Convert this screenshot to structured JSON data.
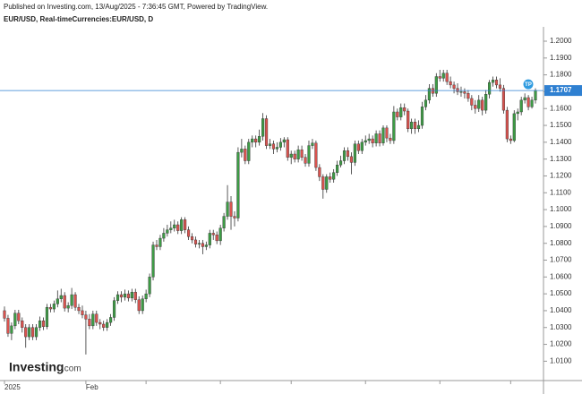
{
  "chart_data": {
    "type": "candlestick",
    "header": "Published on Investing.com, 13/Aug/2025 - 7:36:45 GMT, Powered by TradingView.",
    "title": "EUR/USD, Real-timeCurrencies:EUR/USD, D",
    "logo": {
      "brand": "Investing",
      "suffix": ".com"
    },
    "badge": "TP",
    "up_color": "#3d9b45",
    "down_color": "#d9534f",
    "last_price_color": "#2f80d1",
    "last_price": 1.1707,
    "month_start_index": [
      0,
      23,
      40,
      61,
      81,
      102,
      123,
      143
    ],
    "month_labels": [
      "2025",
      "Feb",
      null,
      null,
      null,
      null,
      null,
      null
    ],
    "ylim": [
      0.9985,
      1.2085
    ],
    "yticks": [
      {
        "value": 1.01,
        "label": "1.0100"
      },
      {
        "value": 1.02,
        "label": "1.0200"
      },
      {
        "value": 1.03,
        "label": "1.0300"
      },
      {
        "value": 1.04,
        "label": "1.0400"
      },
      {
        "value": 1.05,
        "label": "1.0500"
      },
      {
        "value": 1.06,
        "label": "1.0600"
      },
      {
        "value": 1.07,
        "label": "1.0700"
      },
      {
        "value": 1.08,
        "label": "1.0800"
      },
      {
        "value": 1.09,
        "label": "1.0900"
      },
      {
        "value": 1.1,
        "label": "1.1000"
      },
      {
        "value": 1.11,
        "label": "1.1100"
      },
      {
        "value": 1.12,
        "label": "1.1200"
      },
      {
        "value": 1.13,
        "label": "1.1300"
      },
      {
        "value": 1.14,
        "label": "1.1400"
      },
      {
        "value": 1.15,
        "label": "1.1500"
      },
      {
        "value": 1.16,
        "label": "1.1600"
      },
      {
        "value": 1.17,
        "label": "1.1700"
      },
      {
        "value": 1.18,
        "label": "1.1800"
      },
      {
        "value": 1.19,
        "label": "1.1900"
      },
      {
        "value": 1.2,
        "label": "1.2000"
      }
    ],
    "open": [
      1.04,
      1.0355,
      1.0265,
      1.031,
      1.0385,
      1.034,
      1.03,
      1.0245,
      1.03,
      1.0245,
      1.03,
      1.034,
      1.0305,
      1.042,
      1.041,
      1.044,
      1.047,
      1.049,
      1.0415,
      1.043,
      1.0495,
      1.042,
      1.04,
      1.0375,
      1.035,
      1.031,
      1.038,
      1.033,
      1.032,
      1.03,
      1.033,
      1.036,
      1.046,
      1.0495,
      1.048,
      1.05,
      1.0475,
      1.051,
      1.0465,
      1.04,
      1.047,
      1.05,
      1.06,
      1.079,
      1.078,
      1.083,
      1.086,
      1.088,
      1.089,
      1.091,
      1.0875,
      1.094,
      1.088,
      1.084,
      1.082,
      1.0795,
      1.08,
      1.078,
      1.079,
      1.086,
      1.085,
      1.0815,
      1.089,
      1.096,
      1.1045,
      1.096,
      1.095,
      1.134,
      1.136,
      1.129,
      1.14,
      1.142,
      1.14,
      1.1435,
      1.154,
      1.138,
      1.139,
      1.136,
      1.137,
      1.14,
      1.1415,
      1.131,
      1.133,
      1.13,
      1.1355,
      1.131,
      1.1275,
      1.138,
      1.1395,
      1.125,
      1.1195,
      1.112,
      1.1195,
      1.118,
      1.122,
      1.1265,
      1.129,
      1.135,
      1.1315,
      1.128,
      1.139,
      1.135,
      1.14,
      1.141,
      1.142,
      1.1395,
      1.145,
      1.1395,
      1.1485,
      1.1425,
      1.141,
      1.158,
      1.155,
      1.1605,
      1.1585,
      1.148,
      1.152,
      1.148,
      1.15,
      1.161,
      1.165,
      1.172,
      1.169,
      1.179,
      1.178,
      1.181,
      1.176,
      1.174,
      1.172,
      1.17,
      1.17,
      1.169,
      1.166,
      1.162,
      1.16,
      1.165,
      1.159,
      1.1685,
      1.1755,
      1.177,
      1.174,
      1.172,
      1.159,
      1.142,
      1.141,
      1.157,
      1.158,
      1.165,
      1.1665,
      1.161,
      1.165
    ],
    "high": [
      1.0425,
      1.0375,
      1.033,
      1.0405,
      1.0405,
      1.036,
      1.032,
      1.032,
      1.032,
      1.032,
      1.0365,
      1.036,
      1.044,
      1.044,
      1.046,
      1.052,
      1.053,
      1.051,
      1.045,
      1.0535,
      1.051,
      1.044,
      1.043,
      1.04,
      1.038,
      1.04,
      1.04,
      1.035,
      1.034,
      1.035,
      1.038,
      1.048,
      1.0515,
      1.0515,
      1.0525,
      1.052,
      1.053,
      1.053,
      1.0485,
      1.049,
      1.0525,
      1.062,
      1.081,
      1.082,
      1.085,
      1.089,
      1.091,
      1.093,
      1.094,
      1.093,
      1.0955,
      1.0955,
      1.09,
      1.086,
      1.084,
      1.082,
      1.082,
      1.081,
      1.088,
      1.088,
      1.087,
      1.091,
      1.098,
      1.1145,
      1.108,
      1.099,
      1.137,
      1.142,
      1.138,
      1.142,
      1.144,
      1.144,
      1.1475,
      1.1573,
      1.156,
      1.142,
      1.141,
      1.14,
      1.1425,
      1.143,
      1.143,
      1.135,
      1.135,
      1.138,
      1.138,
      1.133,
      1.141,
      1.142,
      1.141,
      1.127,
      1.121,
      1.121,
      1.122,
      1.124,
      1.129,
      1.132,
      1.137,
      1.137,
      1.134,
      1.141,
      1.141,
      1.142,
      1.144,
      1.145,
      1.144,
      1.147,
      1.147,
      1.15,
      1.15,
      1.145,
      1.1615,
      1.16,
      1.163,
      1.163,
      1.16,
      1.154,
      1.154,
      1.153,
      1.164,
      1.168,
      1.1745,
      1.1745,
      1.181,
      1.183,
      1.183,
      1.183,
      1.179,
      1.176,
      1.175,
      1.173,
      1.172,
      1.171,
      1.168,
      1.165,
      1.168,
      1.167,
      1.171,
      1.177,
      1.179,
      1.179,
      1.178,
      1.174,
      1.161,
      1.144,
      1.159,
      1.16,
      1.167,
      1.169,
      1.168,
      1.167,
      1.172
    ],
    "low": [
      1.0335,
      1.0245,
      1.0225,
      1.029,
      1.032,
      1.027,
      1.018,
      1.0225,
      1.0225,
      1.0225,
      1.028,
      1.0285,
      1.029,
      1.039,
      1.039,
      1.042,
      1.045,
      1.0395,
      1.039,
      1.041,
      1.04,
      1.038,
      1.0355,
      1.014,
      1.029,
      1.029,
      1.031,
      1.029,
      1.028,
      1.028,
      1.031,
      1.034,
      1.044,
      1.045,
      1.046,
      1.0455,
      1.0455,
      1.0445,
      1.038,
      1.038,
      1.045,
      1.048,
      1.058,
      1.076,
      1.076,
      1.081,
      1.084,
      1.086,
      1.087,
      1.0855,
      1.0855,
      1.086,
      1.082,
      1.08,
      1.0775,
      1.077,
      1.0735,
      1.076,
      1.077,
      1.082,
      1.0795,
      1.079,
      1.087,
      1.094,
      1.088,
      1.09,
      1.093,
      1.131,
      1.127,
      1.127,
      1.137,
      1.137,
      1.138,
      1.141,
      1.136,
      1.136,
      1.133,
      1.134,
      1.135,
      1.137,
      1.129,
      1.127,
      1.128,
      1.128,
      1.129,
      1.1255,
      1.1255,
      1.136,
      1.123,
      1.117,
      1.1065,
      1.11,
      1.116,
      1.116,
      1.12,
      1.125,
      1.127,
      1.129,
      1.121,
      1.126,
      1.133,
      1.133,
      1.138,
      1.139,
      1.137,
      1.1375,
      1.1375,
      1.138,
      1.14,
      1.139,
      1.139,
      1.153,
      1.153,
      1.156,
      1.146,
      1.145,
      1.145,
      1.146,
      1.148,
      1.159,
      1.163,
      1.167,
      1.167,
      1.176,
      1.176,
      1.174,
      1.172,
      1.169,
      1.168,
      1.167,
      1.166,
      1.164,
      1.159,
      1.157,
      1.158,
      1.156,
      1.157,
      1.166,
      1.173,
      1.172,
      1.17,
      1.157,
      1.14,
      1.139,
      1.14,
      1.153,
      1.156,
      1.163,
      1.159,
      1.16,
      1.163
    ],
    "close": [
      1.0355,
      1.0265,
      1.031,
      1.0385,
      1.034,
      1.03,
      1.0245,
      1.03,
      1.0245,
      1.03,
      1.034,
      1.0305,
      1.042,
      1.041,
      1.044,
      1.047,
      1.049,
      1.0415,
      1.043,
      1.0495,
      1.042,
      1.04,
      1.0375,
      1.035,
      1.031,
      1.038,
      1.033,
      1.032,
      1.03,
      1.033,
      1.036,
      1.046,
      1.0495,
      1.048,
      1.05,
      1.0475,
      1.051,
      1.0465,
      1.04,
      1.047,
      1.05,
      1.06,
      1.079,
      1.078,
      1.083,
      1.086,
      1.088,
      1.089,
      1.091,
      1.0875,
      1.094,
      1.088,
      1.084,
      1.082,
      1.0795,
      1.08,
      1.078,
      1.079,
      1.086,
      1.085,
      1.0815,
      1.089,
      1.096,
      1.1045,
      1.096,
      1.095,
      1.134,
      1.136,
      1.129,
      1.14,
      1.142,
      1.14,
      1.1435,
      1.154,
      1.138,
      1.139,
      1.136,
      1.137,
      1.14,
      1.1415,
      1.131,
      1.133,
      1.13,
      1.1355,
      1.131,
      1.1275,
      1.138,
      1.1395,
      1.125,
      1.1195,
      1.112,
      1.1195,
      1.118,
      1.122,
      1.1265,
      1.129,
      1.135,
      1.1315,
      1.128,
      1.139,
      1.135,
      1.14,
      1.141,
      1.142,
      1.1395,
      1.145,
      1.1395,
      1.1485,
      1.1425,
      1.141,
      1.158,
      1.155,
      1.1605,
      1.1585,
      1.148,
      1.152,
      1.148,
      1.15,
      1.161,
      1.165,
      1.172,
      1.169,
      1.179,
      1.178,
      1.181,
      1.176,
      1.174,
      1.172,
      1.17,
      1.17,
      1.169,
      1.166,
      1.162,
      1.16,
      1.165,
      1.159,
      1.1685,
      1.1755,
      1.177,
      1.174,
      1.172,
      1.159,
      1.142,
      1.141,
      1.157,
      1.158,
      1.165,
      1.1665,
      1.161,
      1.165,
      1.1707
    ]
  }
}
